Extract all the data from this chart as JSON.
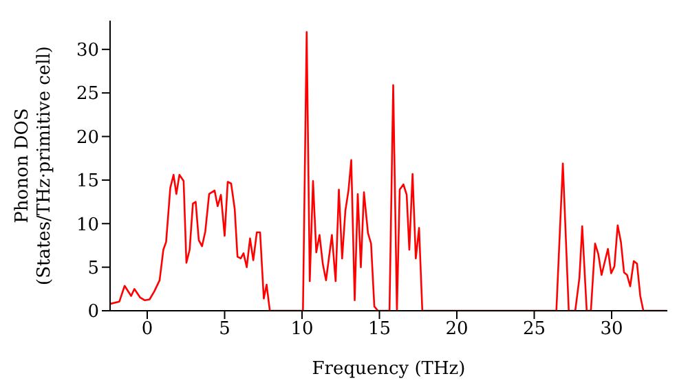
{
  "chart_data": {
    "type": "line",
    "xlabel": "Frequency (THz)",
    "ylabel": "Phonon DOS\n(States/THz·primitive cell)",
    "x": [
      -2.38,
      -1.8,
      -1.46,
      -1.04,
      -0.83,
      -0.45,
      -0.15,
      0.15,
      0.45,
      0.8,
      1.04,
      1.22,
      1.49,
      1.7,
      1.88,
      2.08,
      2.35,
      2.53,
      2.74,
      2.95,
      3.13,
      3.33,
      3.54,
      3.75,
      4.0,
      4.35,
      4.55,
      4.76,
      5.0,
      5.2,
      5.42,
      5.65,
      5.83,
      6.04,
      6.22,
      6.43,
      6.64,
      6.85,
      7.08,
      7.29,
      7.53,
      7.71,
      7.92,
      10.06,
      10.3,
      10.5,
      10.71,
      10.92,
      11.13,
      11.34,
      11.55,
      11.93,
      12.17,
      12.38,
      12.59,
      12.8,
      13.0,
      13.18,
      13.4,
      13.6,
      13.8,
      14.0,
      14.26,
      14.46,
      14.67,
      14.9,
      15.65,
      15.89,
      16.13,
      16.31,
      16.55,
      16.76,
      16.93,
      17.14,
      17.35,
      17.56,
      17.77,
      26.43,
      26.85,
      27.23,
      27.65,
      27.92,
      28.1,
      28.39,
      28.66,
      28.93,
      29.14,
      29.35,
      29.76,
      29.97,
      30.18,
      30.39,
      30.6,
      30.8,
      31.0,
      31.2,
      31.43,
      31.64,
      31.85,
      32.05,
      33.57
    ],
    "series": [
      {
        "color": "#ff0000",
        "values": [
          0.8,
          1.05,
          2.86,
          1.7,
          2.5,
          1.5,
          1.2,
          1.3,
          2.2,
          3.5,
          7,
          7.9,
          14.1,
          15.6,
          13.4,
          15.6,
          14.9,
          5.5,
          7,
          12.3,
          12.5,
          8.1,
          7.4,
          9.1,
          13.4,
          13.8,
          12,
          13.3,
          8.6,
          14.8,
          14.6,
          11.7,
          6.2,
          6,
          6.6,
          5,
          8.3,
          5.8,
          9,
          9,
          1.4,
          3,
          0,
          0,
          32,
          3.4,
          14.9,
          6.7,
          8.7,
          5.4,
          3.5,
          8.7,
          3.4,
          13.9,
          6,
          11.5,
          13.8,
          17.3,
          1.2,
          13.4,
          5,
          13.6,
          8.9,
          7.7,
          0.5,
          0,
          0,
          25.9,
          0,
          13.9,
          14.5,
          13.3,
          7,
          15.7,
          6,
          9.5,
          0,
          0,
          16.9,
          0,
          0,
          3.8,
          9.7,
          0,
          0,
          7.7,
          6.5,
          4.1,
          7.1,
          4.3,
          5.1,
          9.8,
          7.9,
          4.4,
          4.1,
          2.8,
          5.7,
          5.4,
          1.7,
          0,
          0
        ]
      }
    ],
    "xlim": [
      -2.4,
      33.6
    ],
    "xticks": [
      0,
      5,
      10,
      15,
      20,
      25,
      30
    ],
    "ylim": [
      0,
      33.3
    ],
    "yticks": [
      0,
      5,
      10,
      15,
      20,
      25,
      30
    ],
    "line_style": "solid",
    "marker": "none",
    "grid": false,
    "legend": false
  }
}
